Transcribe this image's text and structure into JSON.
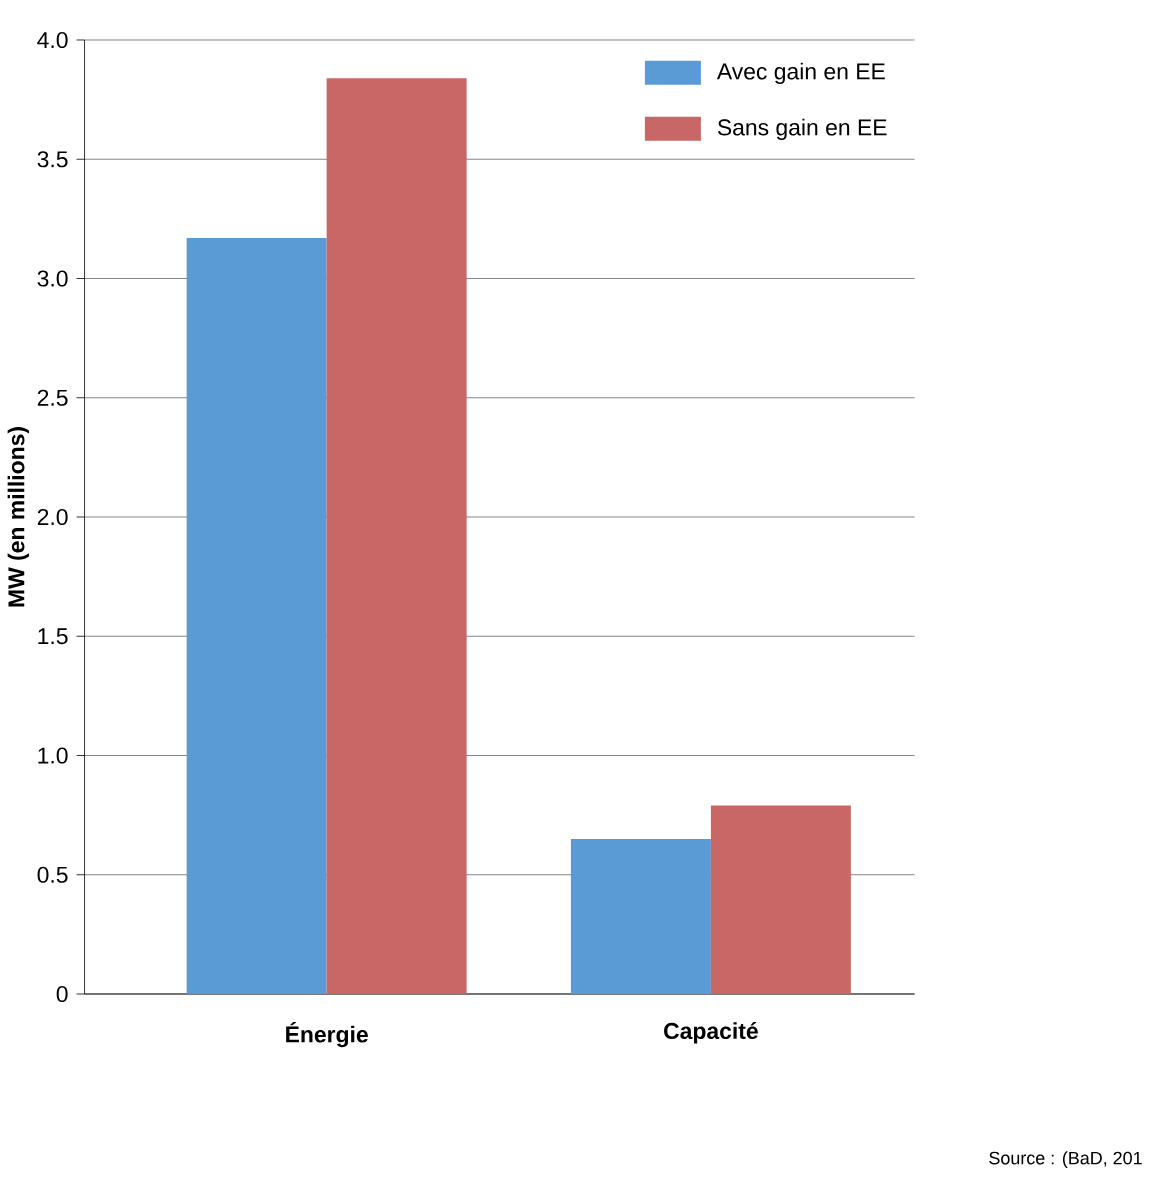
{
  "chart_data": {
    "type": "bar",
    "ylabel": "MW (en millions)",
    "categories": [
      "Énergie",
      "Capacité"
    ],
    "series": [
      {
        "name": "Avec gain en EE",
        "color": "#5b9bd5",
        "values": [
          3.17,
          0.65
        ]
      },
      {
        "name": "Sans gain en EE",
        "color": "#c96767",
        "values": [
          3.84,
          0.79
        ]
      }
    ],
    "ylim": [
      0,
      4
    ],
    "yticks": [
      0,
      0.5,
      {
        "value": 1,
        "label": "1.0"
      },
      1.5,
      {
        "value": 2,
        "label": "2.0"
      },
      2.5,
      {
        "value": 3,
        "label": "3.0"
      },
      3.5,
      {
        "value": 4,
        "label": "4.0"
      }
    ],
    "grid": "y",
    "legend": "top right",
    "annotations": [
      "Source : (BaD, 201"
    ]
  }
}
